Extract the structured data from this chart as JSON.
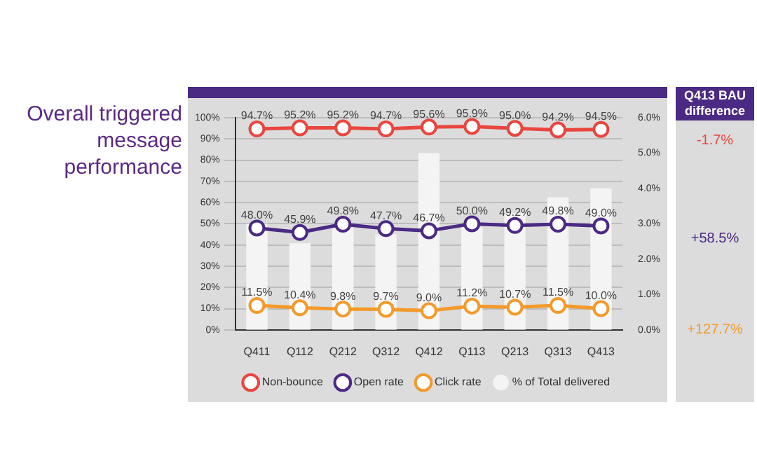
{
  "chart_data": {
    "type": "line",
    "title": "Overall triggered message performance",
    "categories": [
      "Q411",
      "Q112",
      "Q212",
      "Q312",
      "Q412",
      "Q113",
      "Q213",
      "Q313",
      "Q413"
    ],
    "series": [
      {
        "name": "% of Total delivered",
        "type": "bar",
        "axis": "y2",
        "color": "#f4f4f4",
        "values": [
          3.0,
          2.45,
          2.9,
          2.7,
          5.0,
          2.9,
          3.3,
          3.75,
          4.0
        ]
      },
      {
        "name": "Non-bounce",
        "color": "#e8463f",
        "values": [
          94.7,
          95.2,
          95.2,
          94.7,
          95.6,
          95.9,
          95.0,
          94.2,
          94.5
        ],
        "value_labels": [
          "94.7%",
          "95.2%",
          "95.2%",
          "94.7%",
          "95.6%",
          "95.9%",
          "95.0%",
          "94.2%",
          "94.5%"
        ]
      },
      {
        "name": "Open rate",
        "color": "#4b2a84",
        "values": [
          48.0,
          45.9,
          49.8,
          47.7,
          46.7,
          50.0,
          49.2,
          49.8,
          49.0
        ],
        "value_labels": [
          "48.0%",
          "45.9%",
          "49.8%",
          "47.7%",
          "46.7%",
          "50.0%",
          "49.2%",
          "49.8%",
          "49.0%"
        ]
      },
      {
        "name": "Click rate",
        "color": "#f39a2b",
        "values": [
          11.5,
          10.4,
          9.8,
          9.7,
          9.0,
          11.2,
          10.7,
          11.5,
          10.0
        ],
        "value_labels": [
          "11.5%",
          "10.4%",
          "9.8%",
          "9.7%",
          "9.0%",
          "11.2%",
          "10.7%",
          "11.5%",
          "10.0%"
        ]
      }
    ],
    "ylim": [
      0,
      100
    ],
    "yticks": [
      {
        "value": 0,
        "label": "0%"
      },
      {
        "value": 10,
        "label": "10%"
      },
      {
        "value": 20,
        "label": "20%"
      },
      {
        "value": 30,
        "label": "30%"
      },
      {
        "value": 40,
        "label": "40%"
      },
      {
        "value": 50,
        "label": "50%"
      },
      {
        "value": 60,
        "label": "60%"
      },
      {
        "value": 70,
        "label": "70%"
      },
      {
        "value": 80,
        "label": "80%"
      },
      {
        "value": 90,
        "label": "90%"
      },
      {
        "value": 100,
        "label": "100%"
      }
    ],
    "y2lim": [
      0,
      6
    ],
    "y2ticks": [
      {
        "value": 0,
        "label": "0.0%"
      },
      {
        "value": 1,
        "label": "1.0%"
      },
      {
        "value": 2,
        "label": "2.0%"
      },
      {
        "value": 3,
        "label": "3.0%"
      },
      {
        "value": 4,
        "label": "4.0%"
      },
      {
        "value": 5,
        "label": "5.0%"
      },
      {
        "value": 6,
        "label": "6.0%"
      }
    ],
    "grid": "y",
    "legend": "bottom",
    "marker": "circle",
    "line_style": "solid",
    "annotations": [
      "Q413 BAU difference",
      "-1.7%",
      "+58.5%",
      "+127.7%"
    ]
  }
}
